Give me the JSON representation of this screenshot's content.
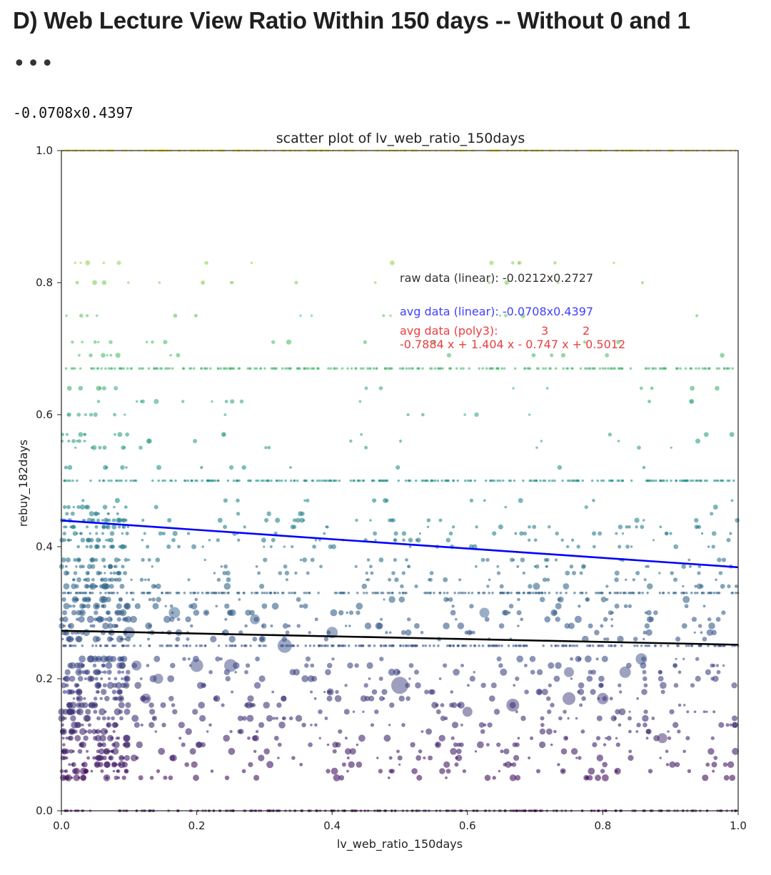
{
  "heading": "D) Web Lecture View Ratio Within 150 days -- Without 0 and 1",
  "more_glyph": "•••",
  "output_text": "-0.0708x0.4397",
  "chart_data": {
    "type": "scatter",
    "title": "scatter plot of lv_web_ratio_150days",
    "xlabel": "lv_web_ratio_150days",
    "ylabel": "rebuy_182days",
    "xlim": [
      0,
      1
    ],
    "ylim": [
      0,
      1
    ],
    "xticks": [
      "0.0",
      "0.2",
      "0.4",
      "0.6",
      "0.8",
      "1.0"
    ],
    "yticks": [
      "0.0",
      "0.2",
      "0.4",
      "0.6",
      "0.8",
      "1.0"
    ],
    "colormap": [
      "#440154",
      "#3b528b",
      "#21918c",
      "#5ec962",
      "#fde725"
    ],
    "point_levels": [
      0,
      0.05,
      0.06,
      0.07,
      0.08,
      0.09,
      0.1,
      0.11,
      0.12,
      0.13,
      0.14,
      0.15,
      0.16,
      0.17,
      0.18,
      0.19,
      0.2,
      0.21,
      0.22,
      0.23,
      0.25,
      0.26,
      0.27,
      0.28,
      0.29,
      0.3,
      0.31,
      0.32,
      0.33,
      0.34,
      0.35,
      0.36,
      0.37,
      0.38,
      0.4,
      0.41,
      0.42,
      0.43,
      0.44,
      0.45,
      0.46,
      0.47,
      0.5,
      0.52,
      0.55,
      0.56,
      0.57,
      0.6,
      0.62,
      0.64,
      0.67,
      0.69,
      0.71,
      0.75,
      0.8,
      0.83,
      1.0
    ],
    "dense_levels": [
      0,
      0.25,
      0.33,
      0.5,
      0.67,
      1.0
    ],
    "large_points": [
      {
        "x": 0.5,
        "y": 0.19,
        "size": 12
      },
      {
        "x": 0.33,
        "y": 0.25,
        "size": 10
      },
      {
        "x": 0.2,
        "y": 0.22,
        "size": 9
      },
      {
        "x": 0.25,
        "y": 0.22,
        "size": 9
      },
      {
        "x": 0.75,
        "y": 0.17,
        "size": 9
      },
      {
        "x": 0.667,
        "y": 0.16,
        "size": 9
      },
      {
        "x": 0.4,
        "y": 0.27,
        "size": 8
      },
      {
        "x": 0.1,
        "y": 0.27,
        "size": 8
      },
      {
        "x": 0.167,
        "y": 0.3,
        "size": 8
      },
      {
        "x": 0.8,
        "y": 0.17,
        "size": 8
      },
      {
        "x": 0.833,
        "y": 0.21,
        "size": 8
      },
      {
        "x": 0.857,
        "y": 0.23,
        "size": 8
      },
      {
        "x": 0.6,
        "y": 0.15,
        "size": 7
      },
      {
        "x": 0.625,
        "y": 0.3,
        "size": 7
      },
      {
        "x": 0.286,
        "y": 0.29,
        "size": 7
      },
      {
        "x": 0.143,
        "y": 0.2,
        "size": 7
      },
      {
        "x": 0.125,
        "y": 0.17,
        "size": 7
      },
      {
        "x": 0.111,
        "y": 0.22,
        "size": 7
      },
      {
        "x": 0.888,
        "y": 0.11,
        "size": 7
      },
      {
        "x": 0.75,
        "y": 0.21,
        "size": 7
      }
    ],
    "lines": [
      {
        "name": "raw data (linear)",
        "color": "#000000",
        "slope": -0.0212,
        "intercept": 0.2727
      },
      {
        "name": "avg data (linear)",
        "color": "#0000ff",
        "slope": -0.0708,
        "intercept": 0.4397
      }
    ],
    "annotations": {
      "raw_linear": "raw data (linear): -0.0212x0.2727",
      "avg_linear": "avg data (linear): -0.0708x0.4397",
      "poly_label": "avg data (poly3):",
      "poly_exp3": "3",
      "poly_exp2": "2",
      "poly_eq": "-0.7884 x + 1.404 x - 0.747 x + 0.5012"
    },
    "annotation_colors": {
      "raw": "#333333",
      "avg_linear": "#4040ff",
      "poly": "#e84040"
    },
    "grid": false,
    "legend": "none"
  }
}
